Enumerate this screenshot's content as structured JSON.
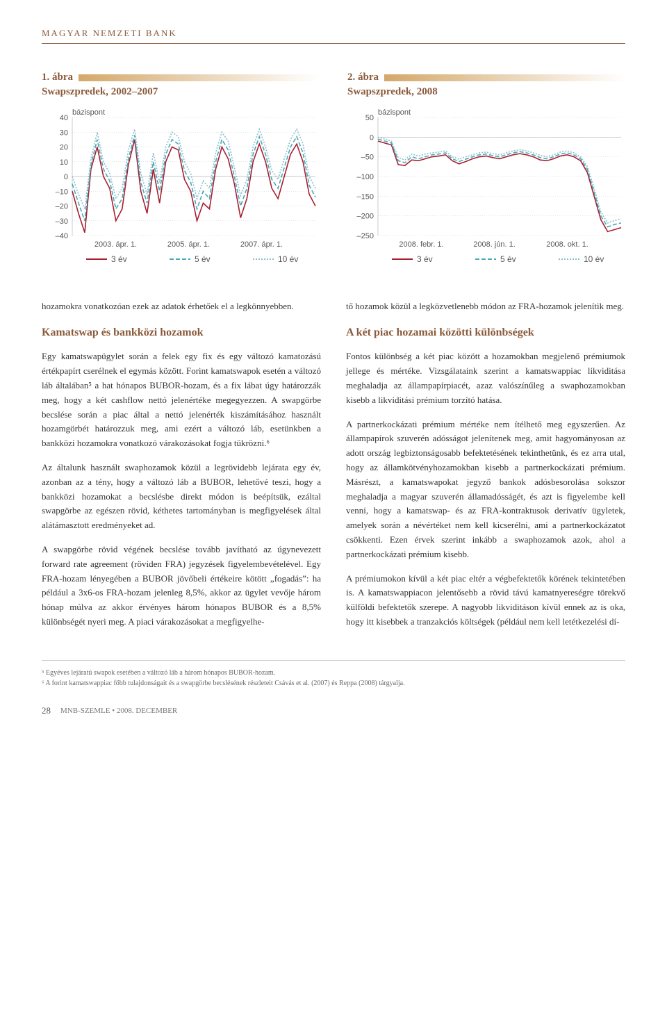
{
  "header": {
    "title": "MAGYAR NEMZETI BANK"
  },
  "charts": [
    {
      "fignum": "1. ábra",
      "title": "Swapszpredek, 2002–2007",
      "ylabel": "bázispont",
      "ylim": [
        -40,
        40
      ],
      "ytick_step": 10,
      "yticks": [
        -40,
        -30,
        -20,
        -10,
        0,
        10,
        20,
        30,
        40
      ],
      "xticks": [
        "2003. ápr. 1.",
        "2005. ápr. 1.",
        "2007. ápr. 1."
      ],
      "background_color": "#ffffff",
      "grid_color": "#cccccc",
      "series": [
        {
          "name": "3 év",
          "color": "#a81f2f",
          "dash": "none",
          "values": [
            -10,
            -25,
            -38,
            5,
            20,
            0,
            -8,
            -30,
            -22,
            8,
            25,
            -10,
            -25,
            5,
            -18,
            10,
            20,
            18,
            -2,
            -10,
            -30,
            -18,
            -22,
            5,
            20,
            12,
            -5,
            -28,
            -15,
            10,
            22,
            10,
            -8,
            -15,
            0,
            15,
            22,
            10,
            -12,
            -20
          ]
        },
        {
          "name": "5 év",
          "color": "#4aa8b8",
          "dash": "6 3",
          "values": [
            -5,
            -18,
            -30,
            8,
            25,
            5,
            -3,
            -22,
            -15,
            12,
            28,
            -4,
            -18,
            10,
            -10,
            15,
            25,
            22,
            4,
            -4,
            -22,
            -10,
            -15,
            10,
            25,
            18,
            0,
            -20,
            -8,
            15,
            27,
            15,
            -2,
            -8,
            6,
            20,
            27,
            16,
            -6,
            -14
          ]
        },
        {
          "name": "10 év",
          "color": "#8abfca",
          "dash": "2 2",
          "values": [
            0,
            -12,
            -22,
            12,
            30,
            10,
            2,
            -15,
            -8,
            18,
            32,
            2,
            -12,
            16,
            -4,
            20,
            30,
            27,
            10,
            2,
            -15,
            -3,
            -8,
            16,
            30,
            24,
            6,
            -13,
            -2,
            20,
            32,
            20,
            4,
            -2,
            12,
            25,
            32,
            22,
            0,
            -8
          ]
        }
      ],
      "legend": [
        "3 év",
        "5 év",
        "10 év"
      ]
    },
    {
      "fignum": "2. ábra",
      "title": "Swapszpredek, 2008",
      "ylabel": "bázispont",
      "ylim": [
        -250,
        50
      ],
      "ytick_step": 50,
      "yticks": [
        -250,
        -200,
        -150,
        -100,
        -50,
        0,
        50
      ],
      "xticks": [
        "2008. febr. 1.",
        "2008. jún. 1.",
        "2008. okt. 1."
      ],
      "background_color": "#ffffff",
      "grid_color": "#cccccc",
      "series": [
        {
          "name": "3 év",
          "color": "#a81f2f",
          "dash": "none",
          "values": [
            -10,
            -15,
            -20,
            -70,
            -72,
            -58,
            -60,
            -55,
            -50,
            -48,
            -45,
            -60,
            -68,
            -62,
            -55,
            -50,
            -48,
            -52,
            -55,
            -50,
            -45,
            -42,
            -45,
            -50,
            -58,
            -60,
            -55,
            -48,
            -45,
            -50,
            -60,
            -90,
            -150,
            -210,
            -240,
            -235,
            -230
          ]
        },
        {
          "name": "5 év",
          "color": "#4aa8b8",
          "dash": "6 3",
          "values": [
            -5,
            -10,
            -15,
            -60,
            -65,
            -50,
            -55,
            -50,
            -45,
            -43,
            -40,
            -55,
            -62,
            -56,
            -50,
            -45,
            -43,
            -47,
            -50,
            -45,
            -40,
            -37,
            -40,
            -45,
            -52,
            -55,
            -50,
            -43,
            -40,
            -45,
            -55,
            -82,
            -140,
            -200,
            -228,
            -222,
            -218
          ]
        },
        {
          "name": "10 év",
          "color": "#8abfca",
          "dash": "2 2",
          "values": [
            0,
            -5,
            -10,
            -52,
            -58,
            -43,
            -48,
            -43,
            -40,
            -38,
            -35,
            -50,
            -56,
            -50,
            -45,
            -40,
            -38,
            -42,
            -45,
            -40,
            -35,
            -32,
            -35,
            -40,
            -46,
            -50,
            -45,
            -38,
            -35,
            -40,
            -50,
            -75,
            -130,
            -190,
            -218,
            -212,
            -208
          ]
        }
      ],
      "legend": [
        "3 év",
        "5 év",
        "10 év"
      ]
    }
  ],
  "body": {
    "p_lead": "hozamokra vonatkozóan ezek az adatok érhetőek el a legkönnyebben.",
    "h_swap": "Kamatswap és bankközi hozamok",
    "p1": "Egy kamatswapügylet során a felek egy fix és egy változó kamatozású értékpapírt cserélnek el egymás között. Forint kamatswapok esetén a változó láb általában⁵ a hat hónapos BUBOR-hozam, és a fix lábat úgy határozzák meg, hogy a két cashflow nettó jelenértéke megegyezzen. A swapgörbe becslése során a piac által a nettó jelenérték kiszámításához használt hozamgörbét határozzuk meg, ami ezért a változó láb, esetünkben a bankközi hozamokra vonatkozó várakozásokat fogja tükrözni.⁶",
    "p2": "Az általunk használt swaphozamok közül a legrövidebb lejárata egy év, azonban az a tény, hogy a változó láb a BUBOR, lehetővé teszi, hogy a bankközi hozamokat a becslésbe direkt módon is beépítsük, ezáltal swapgörbe az egészen rövid, kéthetes tartományban is megfigyelések által alátámasztott eredményeket ad.",
    "p3": "A swapgörbe rövid végének becslése tovább javítható az úgynevezett forward rate agreement (röviden FRA) jegyzések figyelembevételével. Egy FRA-hozam lényegében a BUBOR jövőbeli értékeire kötött „fogadás”: ha például a 3x6-os FRA-hozam jelenleg 8,5%, akkor az ügylet vevője három hónap múlva az akkor érvényes három hónapos BUBOR és a 8,5% különbségét nyeri meg. A piaci várakozásokat a megfigyelhe-",
    "p_right_lead": "tő hozamok közül a legközvetlenebb módon az FRA-hozamok jelenítik meg.",
    "h_diff": "A két piac hozamai közötti különbségek",
    "p4": "Fontos különbség a két piac között a hozamokban megjelenő prémiumok jellege és mértéke. Vizsgálataink szerint a kamatswappiac likviditása meghaladja az állampapírpiacét, azaz valószínűleg a swaphozamokban kisebb a likviditási prémium torzító hatása.",
    "p5": "A partnerkockázati prémium mértéke nem ítélhető meg egyszerűen. Az állampapírok szuverén adósságot jelenítenek meg, amit hagyományosan az adott ország legbiztonságosabb befektetésének tekinthetünk, és ez arra utal, hogy az államkötvényhozamokban kisebb a partnerkockázati prémium. Másrészt, a kamatswapokat jegyző bankok adósbesorolása sokszor meghaladja a magyar szuverén államadósságét, és azt is figyelembe kell venni, hogy a kamatswap- és az FRA-kontraktusok derivatív ügyletek, amelyek során a névértéket nem kell kicserélni, ami a partnerkockázatot csökkenti. Ezen érvek szerint inkább a swaphozamok azok, ahol a partnerkockázati prémium kisebb.",
    "p6": "A prémiumokon kívül a két piac eltér a végbefektetők körének tekintetében is. A kamatswappiacon jelentősebb a rövid távú kamatnyereségre törekvő külföldi befektetők szerepe. A nagyobb likviditáson kívül ennek az is oka, hogy itt kisebbek a tranzakciós költségek (például nem kell letétkezelési dí-"
  },
  "footnotes": {
    "f5": "⁵ Egyéves lejáratú swapok esetében a változó láb a három hónapos BUBOR-hozam.",
    "f6": "⁶ A forint kamatswappiac főbb tulajdonságait és a swapgörbe becslésének részleteit Csávás et al. (2007) és Reppa (2008) tárgyalja."
  },
  "footer": {
    "pagenum": "28",
    "text": "MNB-SZEMLE • 2008. DECEMBER"
  }
}
